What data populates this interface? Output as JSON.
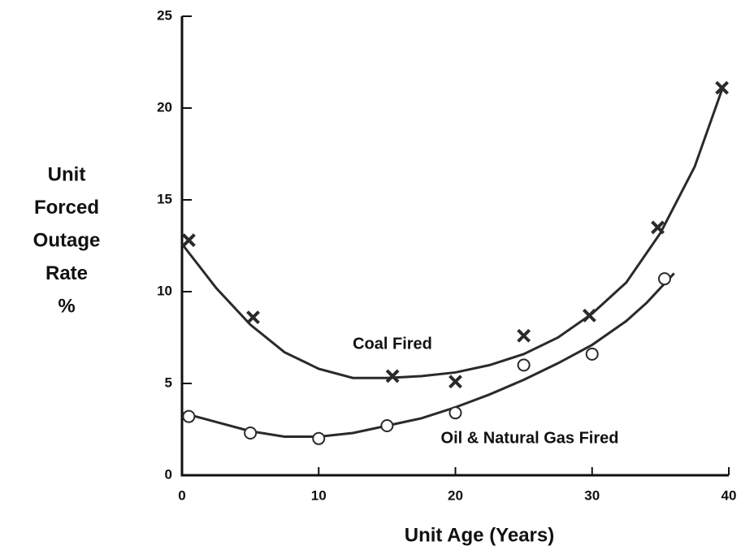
{
  "chart_data": {
    "type": "scatter",
    "xlabel": "Unit Age (Years)",
    "ylabel": [
      "Unit",
      "Forced",
      "Outage",
      "Rate",
      "%"
    ],
    "xlim": [
      0,
      40
    ],
    "xticks": [
      0,
      10,
      20,
      30,
      40
    ],
    "ylim": [
      0,
      25
    ],
    "yticks": [
      0,
      5,
      10,
      15,
      20,
      25
    ],
    "grid": false,
    "series": [
      {
        "name": "Coal Fired",
        "marker": "x",
        "color": "#2a2a2a",
        "x": [
          0.5,
          5.2,
          15.4,
          20,
          25,
          29.8,
          34.8,
          39.5
        ],
        "values": [
          12.8,
          8.6,
          5.4,
          5.1,
          7.6,
          8.7,
          13.5,
          21.1
        ],
        "curve": {
          "x": [
            0,
            2.5,
            5,
            7.5,
            10,
            12.5,
            15,
            17.5,
            20,
            22.5,
            25,
            27.5,
            30,
            32.5,
            35,
            37.5,
            39.5
          ],
          "values": [
            12.6,
            10.2,
            8.2,
            6.7,
            5.8,
            5.3,
            5.3,
            5.4,
            5.6,
            6.0,
            6.6,
            7.5,
            8.8,
            10.5,
            13.2,
            16.8,
            21
          ]
        }
      },
      {
        "name": "Oil & Natural Gas Fired",
        "marker": "o",
        "color": "#2a2a2a",
        "x": [
          0.5,
          5,
          10,
          15,
          20,
          25,
          30,
          35.3
        ],
        "values": [
          3.2,
          2.3,
          2.0,
          2.7,
          3.4,
          6.0,
          6.6,
          10.7
        ],
        "curve": {
          "x": [
            0,
            2.5,
            5,
            7.5,
            10,
            12.5,
            15,
            17.5,
            20,
            22.5,
            25,
            27.5,
            30,
            32.5,
            34,
            36
          ],
          "values": [
            3.4,
            2.9,
            2.4,
            2.1,
            2.1,
            2.3,
            2.7,
            3.1,
            3.7,
            4.4,
            5.2,
            6.1,
            7.1,
            8.4,
            9.4,
            11.0
          ]
        }
      }
    ]
  }
}
